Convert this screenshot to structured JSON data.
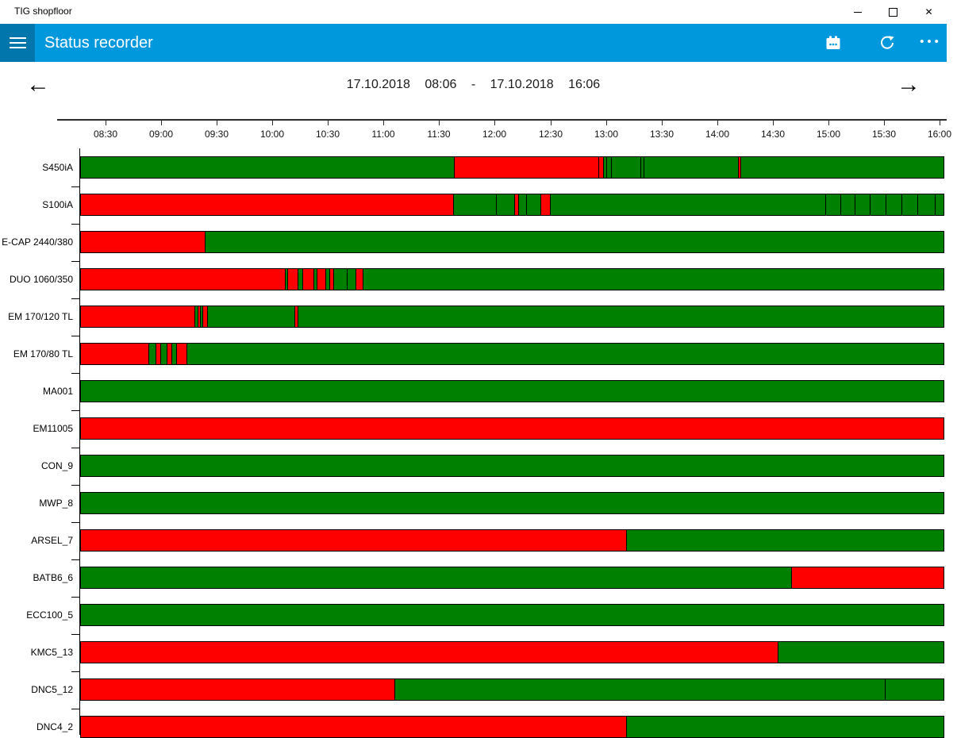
{
  "window": {
    "title": "TIG shopfloor"
  },
  "appbar": {
    "title": "Status recorder"
  },
  "icons": {
    "menu": "hamburger",
    "calendar": "calendar",
    "refresh": "refresh-arrow",
    "more": "•••",
    "back": "←",
    "forward": "→",
    "close": "✕"
  },
  "colors": {
    "accent": "#0098dc",
    "accent_dark": "#0076ac",
    "status_green": "#008000",
    "status_red": "#ff0000"
  },
  "nav": {
    "start_date": "17.10.2018",
    "start_time": "08:06",
    "separator": "-",
    "end_date": "17.10.2018",
    "end_time": "16:06"
  },
  "chart_data": {
    "type": "status-timeline",
    "x_axis": {
      "tick_labels": [
        "08:30",
        "09:00",
        "09:30",
        "10:00",
        "10:30",
        "11:00",
        "11:30",
        "12:00",
        "12:30",
        "13:00",
        "13:30",
        "14:00",
        "14:30",
        "15:00",
        "15:30",
        "16:00"
      ],
      "range_start": "17.10.2018 08:06",
      "range_end": "17.10.2018 16:06"
    },
    "status_colors": {
      "green": "#008000",
      "red": "#ff0000"
    },
    "unit_note": "segments widths are px of 1089 total (≈ 8 h span, ≈140 px per hour)",
    "rows": [
      {
        "machine": "S450iA",
        "segments": [
          {
            "color": "green",
            "px": 472
          },
          {
            "color": "red",
            "px": 182
          },
          {
            "color": "red",
            "px": 6
          },
          {
            "color": "green",
            "px": 4
          },
          {
            "color": "green",
            "px": 6
          },
          {
            "color": "green",
            "px": 37
          },
          {
            "color": "green",
            "px": 4
          },
          {
            "color": "green",
            "px": 119
          },
          {
            "color": "red",
            "px": 3
          },
          {
            "color": "green",
            "px": 256
          }
        ]
      },
      {
        "machine": "S100iA",
        "segments": [
          {
            "color": "red",
            "px": 471
          },
          {
            "color": "green",
            "px": 54
          },
          {
            "color": "green",
            "px": 23
          },
          {
            "color": "red",
            "px": 5
          },
          {
            "color": "green",
            "px": 10
          },
          {
            "color": "green",
            "px": 18
          },
          {
            "color": "red",
            "px": 12
          },
          {
            "color": "green",
            "px": 347
          },
          {
            "color": "green",
            "px": 19
          },
          {
            "color": "green",
            "px": 18
          },
          {
            "color": "green",
            "px": 19
          },
          {
            "color": "green",
            "px": 20
          },
          {
            "color": "green",
            "px": 20
          },
          {
            "color": "green",
            "px": 20
          },
          {
            "color": "green",
            "px": 22
          },
          {
            "color": "green",
            "px": 11
          }
        ]
      },
      {
        "machine": "E-CAP 2440/380",
        "segments": [
          {
            "color": "red",
            "px": 158
          },
          {
            "color": "green",
            "px": 931
          }
        ]
      },
      {
        "machine": "DUO 1060/350",
        "segments": [
          {
            "color": "red",
            "px": 259
          },
          {
            "color": "green",
            "px": 3
          },
          {
            "color": "red",
            "px": 13
          },
          {
            "color": "green",
            "px": 6
          },
          {
            "color": "red",
            "px": 14
          },
          {
            "color": "green",
            "px": 4
          },
          {
            "color": "red",
            "px": 11
          },
          {
            "color": "green",
            "px": 5
          },
          {
            "color": "red",
            "px": 5
          },
          {
            "color": "green",
            "px": 17
          },
          {
            "color": "green",
            "px": 11
          },
          {
            "color": "red",
            "px": 9
          },
          {
            "color": "green",
            "px": 732
          }
        ]
      },
      {
        "machine": "EM 170/120 TL",
        "segments": [
          {
            "color": "red",
            "px": 145
          },
          {
            "color": "green",
            "px": 4
          },
          {
            "color": "red",
            "px": 3
          },
          {
            "color": "green",
            "px": 3
          },
          {
            "color": "red",
            "px": 6
          },
          {
            "color": "green",
            "px": 110
          },
          {
            "color": "red",
            "px": 4
          },
          {
            "color": "green",
            "px": 814
          }
        ]
      },
      {
        "machine": "EM 170/80 TL",
        "segments": [
          {
            "color": "red",
            "px": 87
          },
          {
            "color": "green",
            "px": 9
          },
          {
            "color": "red",
            "px": 6
          },
          {
            "color": "green",
            "px": 8
          },
          {
            "color": "red",
            "px": 6
          },
          {
            "color": "green",
            "px": 6
          },
          {
            "color": "red",
            "px": 13
          },
          {
            "color": "green",
            "px": 954
          }
        ]
      },
      {
        "machine": "MA001",
        "segments": [
          {
            "color": "green",
            "px": 1089
          }
        ]
      },
      {
        "machine": "EM11005",
        "segments": [
          {
            "color": "red",
            "px": 1089
          }
        ]
      },
      {
        "machine": "CON_9",
        "segments": [
          {
            "color": "green",
            "px": 1089
          }
        ]
      },
      {
        "machine": "MWP_8",
        "segments": [
          {
            "color": "green",
            "px": 1089
          }
        ]
      },
      {
        "machine": "ARSEL_7",
        "segments": [
          {
            "color": "red",
            "px": 689
          },
          {
            "color": "green",
            "px": 400
          }
        ]
      },
      {
        "machine": "BATB6_6",
        "segments": [
          {
            "color": "green",
            "px": 897
          },
          {
            "color": "red",
            "px": 192
          }
        ]
      },
      {
        "machine": "ECC100_5",
        "segments": [
          {
            "color": "green",
            "px": 1089
          }
        ]
      },
      {
        "machine": "KMC5_13",
        "segments": [
          {
            "color": "red",
            "px": 880
          },
          {
            "color": "green",
            "px": 209
          }
        ]
      },
      {
        "machine": "DNC5_12",
        "segments": [
          {
            "color": "red",
            "px": 397
          },
          {
            "color": "green",
            "px": 618
          },
          {
            "color": "green",
            "px": 74
          }
        ]
      },
      {
        "machine": "DNC4_2",
        "segments": [
          {
            "color": "red",
            "px": 689
          },
          {
            "color": "green",
            "px": 400
          }
        ]
      }
    ]
  }
}
